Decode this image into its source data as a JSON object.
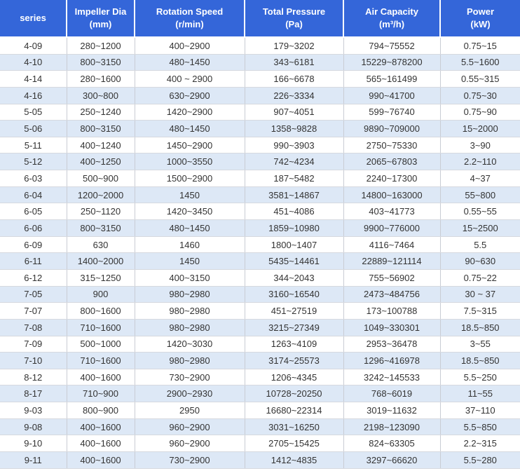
{
  "headers": [
    {
      "line1": "series",
      "line2": ""
    },
    {
      "line1": "Impeller Dia",
      "line2": "(mm)"
    },
    {
      "line1": "Rotation Speed",
      "line2": "(r/min)"
    },
    {
      "line1": "Total Pressure",
      "line2": "(Pa)"
    },
    {
      "line1": "Air Capacity",
      "line2": "(m³/h)"
    },
    {
      "line1": "Power",
      "line2": "(kW)"
    }
  ],
  "rows": [
    [
      "4-09",
      "280~1200",
      "400~2900",
      "179~3202",
      "794~75552",
      "0.75~15"
    ],
    [
      "4-10",
      "800~3150",
      "480~1450",
      "343~6181",
      "15229~878200",
      "5.5~1600"
    ],
    [
      "4-14",
      "280~1600",
      "400 ~ 2900",
      "166~6678",
      "565~161499",
      "0.55~315"
    ],
    [
      "4-16",
      "300~800",
      "630~2900",
      "226~3334",
      "990~41700",
      "0.75~30"
    ],
    [
      "5-05",
      "250~1240",
      "1420~2900",
      "907~4051",
      "599~76740",
      "0.75~90"
    ],
    [
      "5-06",
      "800~3150",
      "480~1450",
      "1358~9828",
      "9890~709000",
      "15~2000"
    ],
    [
      "5-11",
      "400~1240",
      "1450~2900",
      "990~3903",
      "2750~75330",
      "3~90"
    ],
    [
      "5-12",
      "400~1250",
      "1000~3550",
      "742~4234",
      "2065~67803",
      "2.2~110"
    ],
    [
      "6-03",
      "500~900",
      "1500~2900",
      "187~5482",
      "2240~17300",
      "4~37"
    ],
    [
      "6-04",
      "1200~2000",
      "1450",
      "3581~14867",
      "14800~163000",
      "55~800"
    ],
    [
      "6-05",
      "250~1120",
      "1420~3450",
      "451~4086",
      "403~41773",
      "0.55~55"
    ],
    [
      "6-06",
      "800~3150",
      "480~1450",
      "1859~10980",
      "9900~776000",
      "15~2500"
    ],
    [
      "6-09",
      "630",
      "1460",
      "1800~1407",
      "4116~7464",
      "5.5"
    ],
    [
      "6-11",
      "1400~2000",
      "1450",
      "5435~14461",
      "22889~121114",
      "90~630"
    ],
    [
      "6-12",
      "315~1250",
      "400~3150",
      "344~2043",
      "755~56902",
      "0.75~22"
    ],
    [
      "7-05",
      "900",
      "980~2980",
      "3160~16540",
      "2473~484756",
      "30 ~ 37"
    ],
    [
      "7-07",
      "800~1600",
      "980~2980",
      "451~27519",
      "173~100788",
      "7.5~315"
    ],
    [
      "7-08",
      "710~1600",
      "980~2980",
      "3215~27349",
      "1049~330301",
      "18.5~850"
    ],
    [
      "7-09",
      "500~1000",
      "1420~3030",
      "1263~4109",
      "2953~36478",
      "3~55"
    ],
    [
      "7-10",
      "710~1600",
      "980~2980",
      "3174~25573",
      "1296~416978",
      "18.5~850"
    ],
    [
      "8-12",
      "400~1600",
      "730~2900",
      "1206~4345",
      "3242~145533",
      "5.5~250"
    ],
    [
      "8-17",
      "710~900",
      "2900~2930",
      "10728~20250",
      "768~6019",
      "11~55"
    ],
    [
      "9-03",
      "800~900",
      "2950",
      "16680~22314",
      "3019~11632",
      "37~110"
    ],
    [
      "9-08",
      "400~1600",
      "960~2900",
      "3031~16250",
      "2198~123090",
      "5.5~850"
    ],
    [
      "9-10",
      "400~1600",
      "960~2900",
      "2705~15425",
      "824~63305",
      "2.2~315"
    ],
    [
      "9-11",
      "400~1600",
      "730~2900",
      "1412~4835",
      "3297~66620",
      "5.5~280"
    ]
  ]
}
